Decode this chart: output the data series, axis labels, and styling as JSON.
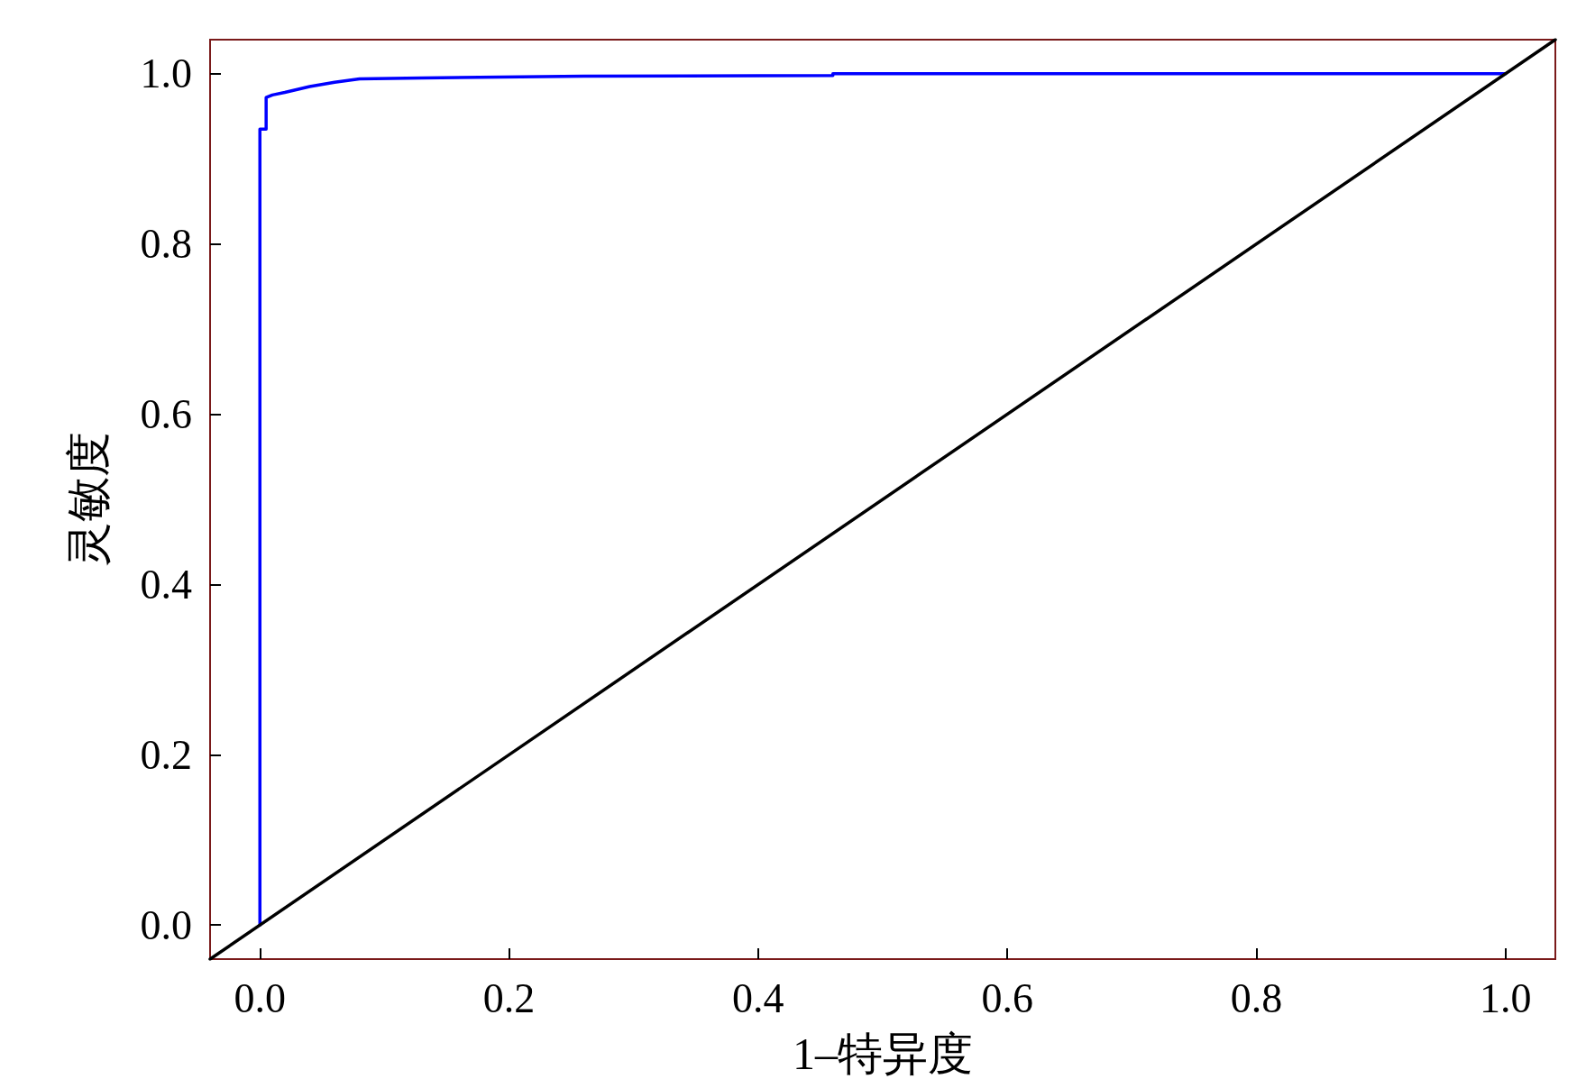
{
  "chart_data": {
    "type": "line",
    "xlabel": "1–特异度",
    "ylabel": "灵敏度",
    "xlim": [
      -0.04,
      1.04
    ],
    "ylim": [
      -0.04,
      1.04
    ],
    "xticks": [
      {
        "value": 0,
        "label": "0.0"
      },
      0.2,
      0.4,
      0.6,
      0.8,
      {
        "value": 1,
        "label": "1.0"
      }
    ],
    "yticks": [
      {
        "value": 0,
        "label": "0.0"
      },
      0.2,
      0.4,
      0.6,
      0.8,
      {
        "value": 1,
        "label": "1.0"
      }
    ],
    "grid": false,
    "marker": "none",
    "line_style": "solid",
    "series": [
      {
        "color": "#0000ff",
        "x": [
          0,
          0,
          0.005,
          0.005,
          0.01,
          0.02,
          0.04,
          0.06,
          0.08,
          0.13,
          0.26,
          0.46,
          0.46,
          1.0
        ],
        "values": [
          0,
          0.935,
          0.935,
          0.972,
          0.975,
          0.978,
          0.985,
          0.99,
          0.994,
          0.995,
          0.997,
          0.998,
          1.0,
          1.0
        ]
      },
      {
        "color": "#000000",
        "x": [
          -0.04,
          1.04
        ],
        "values": [
          -0.04,
          1.04
        ]
      }
    ]
  }
}
